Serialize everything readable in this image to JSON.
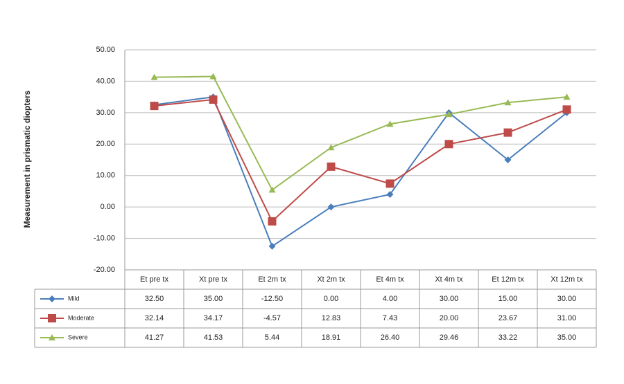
{
  "chart_data": {
    "type": "line",
    "y_label": "Measurement in prismatic diopters",
    "categories": [
      "Et pre tx",
      "Xt pre tx",
      "Et 2m tx",
      "Xt 2m tx",
      "Et 4m tx",
      "Xt 4m tx",
      "Et 12m tx",
      "Xt 12m tx"
    ],
    "series": [
      {
        "name": "Mild",
        "color": "#4a7ebb",
        "marker": "diamond",
        "values": [
          32.5,
          35,
          -12.5,
          0,
          4,
          30,
          15,
          30
        ],
        "value_labels": [
          "32.50",
          "35.00",
          "-12.50",
          "0.00",
          "4.00",
          "30.00",
          "15.00",
          "30.00"
        ]
      },
      {
        "name": "Moderate",
        "color": "#be4b48",
        "marker": "square",
        "values": [
          32.14,
          34.17,
          -4.57,
          12.83,
          7.43,
          20,
          23.67,
          31
        ],
        "value_labels": [
          "32.14",
          "34.17",
          "-4.57",
          "12.83",
          "7.43",
          "20.00",
          "23.67",
          "31.00"
        ]
      },
      {
        "name": "Severe",
        "color": "#98b954",
        "marker": "triangle",
        "values": [
          41.27,
          41.53,
          5.44,
          18.91,
          26.4,
          29.46,
          33.22,
          35
        ],
        "value_labels": [
          "41.27",
          "41.53",
          "5.44",
          "18.91",
          "26.40",
          "29.46",
          "33.22",
          "35.00"
        ]
      }
    ],
    "ylim": [
      -20,
      50
    ],
    "yticks": [
      {
        "value": -20,
        "label": "-20.00"
      },
      {
        "value": -10,
        "label": "-10.00"
      },
      {
        "value": 0,
        "label": "0.00"
      },
      {
        "value": 10,
        "label": "10.00"
      },
      {
        "value": 20,
        "label": "20.00"
      },
      {
        "value": 30,
        "label": "30.00"
      },
      {
        "value": 40,
        "label": "40.00"
      },
      {
        "value": 50,
        "label": "50.00"
      }
    ],
    "grid": true
  }
}
